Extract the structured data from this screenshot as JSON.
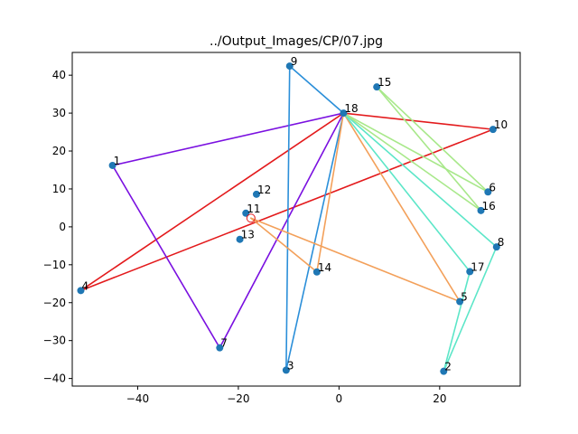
{
  "chart_data": {
    "type": "scatter",
    "title": "../Output_Images/CP/07.jpg",
    "xlabel": "",
    "ylabel": "",
    "xlim": [
      -53,
      36
    ],
    "ylim": [
      -42,
      46
    ],
    "xticks": [
      -40,
      -20,
      0,
      20
    ],
    "yticks": [
      -40,
      -30,
      -20,
      -10,
      0,
      10,
      20,
      30,
      40
    ],
    "grid": false,
    "legend": "none",
    "marker_color": "#1f77b4",
    "points": [
      {
        "label": "1",
        "x": -45.0,
        "y": 16.2
      },
      {
        "label": "2",
        "x": 20.8,
        "y": -38.1
      },
      {
        "label": "3",
        "x": -10.5,
        "y": -37.8
      },
      {
        "label": "4",
        "x": -51.3,
        "y": -16.8
      },
      {
        "label": "5",
        "x": 24.0,
        "y": -19.7
      },
      {
        "label": "6",
        "x": 29.6,
        "y": 9.2
      },
      {
        "label": "7",
        "x": -23.7,
        "y": -31.9
      },
      {
        "label": "8",
        "x": 31.3,
        "y": -5.3
      },
      {
        "label": "9",
        "x": -9.8,
        "y": 42.4
      },
      {
        "label": "10",
        "x": 30.6,
        "y": 25.7
      },
      {
        "label": "11",
        "x": -18.5,
        "y": 3.6
      },
      {
        "label": "12",
        "x": -16.4,
        "y": 8.6
      },
      {
        "label": "13",
        "x": -19.7,
        "y": -3.3
      },
      {
        "label": "14",
        "x": -4.4,
        "y": -11.9
      },
      {
        "label": "15",
        "x": 7.5,
        "y": 36.9
      },
      {
        "label": "16",
        "x": 28.2,
        "y": 4.3
      },
      {
        "label": "17",
        "x": 26.0,
        "y": -11.8
      },
      {
        "label": "18",
        "x": 0.9,
        "y": 30.0
      },
      {
        "label": "A",
        "x": -17.5,
        "y": 2.3
      }
    ],
    "segments": [
      {
        "from": "4",
        "to": "18",
        "color": "#e31a1c"
      },
      {
        "from": "18",
        "to": "10",
        "color": "#e31a1c"
      },
      {
        "from": "10",
        "to": "4",
        "color": "#e31a1c"
      },
      {
        "from": "1",
        "to": "18",
        "color": "#7a10e0"
      },
      {
        "from": "1",
        "to": "7",
        "color": "#7a10e0"
      },
      {
        "from": "7",
        "to": "18",
        "color": "#7a10e0"
      },
      {
        "from": "9",
        "to": "18",
        "color": "#2b8fd9"
      },
      {
        "from": "9",
        "to": "3",
        "color": "#2b8fd9"
      },
      {
        "from": "3",
        "to": "18",
        "color": "#2b8fd9"
      },
      {
        "from": "18",
        "to": "14",
        "color": "#f3a05a"
      },
      {
        "from": "14",
        "to": "A",
        "color": "#f3a05a"
      },
      {
        "from": "A",
        "to": "5",
        "color": "#f3a05a"
      },
      {
        "from": "5",
        "to": "18",
        "color": "#f3a05a"
      },
      {
        "from": "18",
        "to": "8",
        "color": "#5ce6c8"
      },
      {
        "from": "18",
        "to": "17",
        "color": "#5ce6c8"
      },
      {
        "from": "8",
        "to": "2",
        "color": "#5ce6c8"
      },
      {
        "from": "17",
        "to": "2",
        "color": "#5ce6c8"
      },
      {
        "from": "18",
        "to": "16",
        "color": "#a8e88a"
      },
      {
        "from": "18",
        "to": "6",
        "color": "#a8e88a"
      },
      {
        "from": "15",
        "to": "16",
        "color": "#a8e88a"
      },
      {
        "from": "15",
        "to": "6",
        "color": "#a8e88a"
      }
    ]
  }
}
